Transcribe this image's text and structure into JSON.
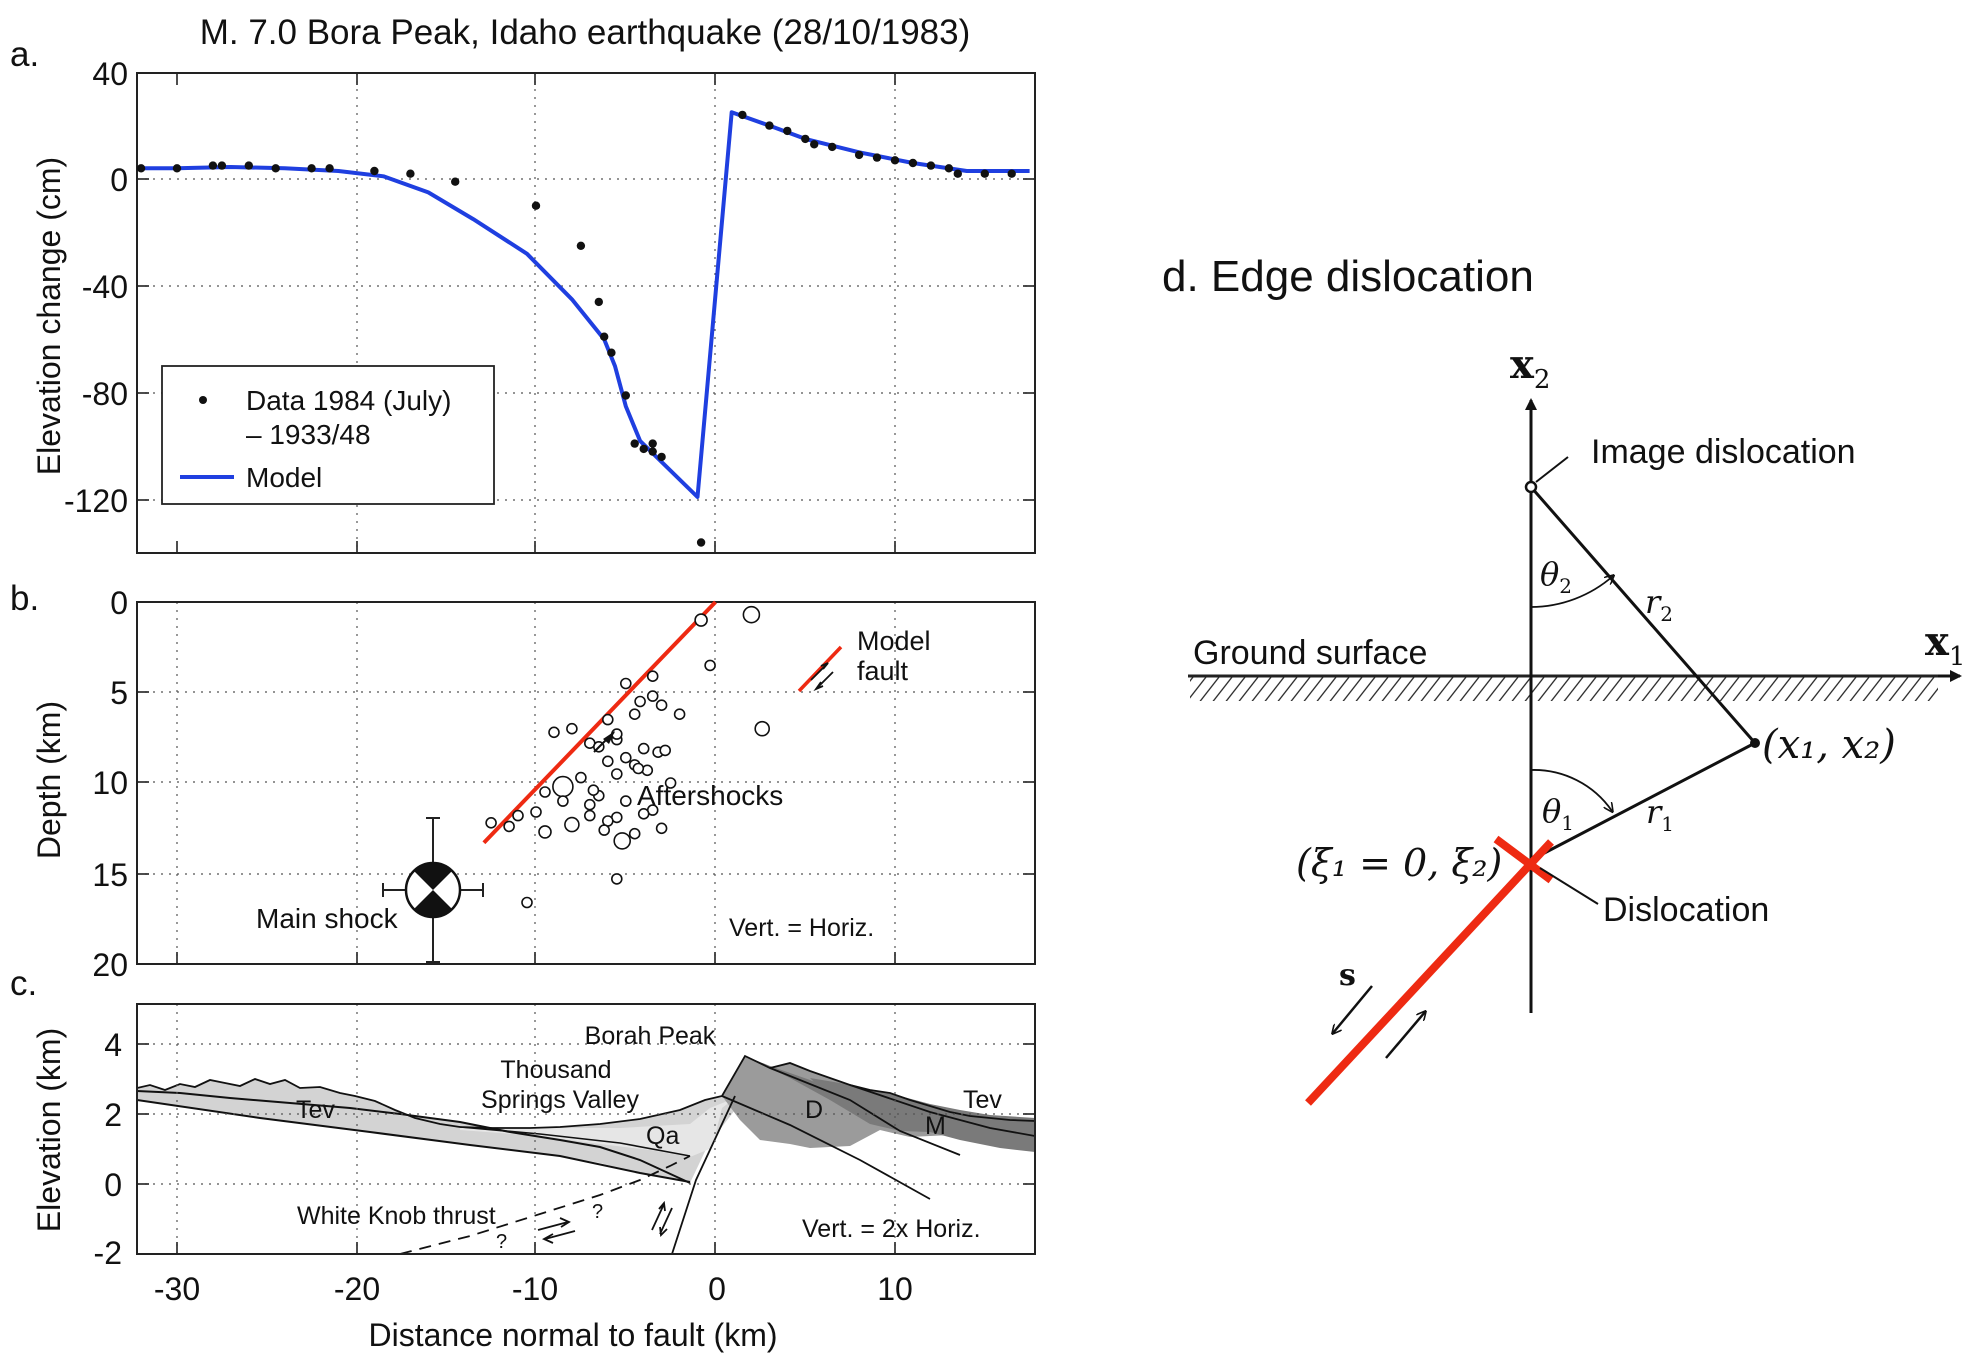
{
  "panel_a": {
    "letter": "a.",
    "title": "M. 7.0 Bora Peak, Idaho earthquake (28/10/1983)",
    "ylabel": "Elevation change (cm)",
    "legend": {
      "data_label_line1": "Data 1984 (July)",
      "data_label_line2": "– 1933/48",
      "model_label": "Model"
    },
    "ytick_labels": [
      "40",
      "0",
      "-40",
      "-80",
      "-120"
    ]
  },
  "panel_b": {
    "letter": "b.",
    "ylabel": "Depth (km)",
    "ytick_labels": [
      "0",
      "5",
      "10",
      "15",
      "20"
    ],
    "model_fault_line1": "Model",
    "model_fault_line2": "fault",
    "aftershocks": "Aftershocks",
    "main_shock": "Main shock",
    "scale_note": "Vert. = Horiz."
  },
  "panel_c": {
    "letter": "c.",
    "ylabel": "Elevation (km)",
    "xlabel": "Distance normal to fault (km)",
    "ytick_labels": [
      "4",
      "2",
      "0",
      "-2"
    ],
    "xtick_labels": [
      "-30",
      "-20",
      "-10",
      "0",
      "10"
    ],
    "borah_peak": "Borah Peak",
    "valley_line1": "Thousand",
    "valley_line2": "Springs Valley",
    "tev_left": "Tev",
    "tev_right": "Tev",
    "qa": "Qa",
    "d": "D",
    "m": "M",
    "thrust": "White Knob thrust",
    "q1": "?",
    "q2": "?",
    "scale_note": "Vert. = 2x Horiz."
  },
  "panel_d": {
    "title": "d. Edge dislocation",
    "x2_label": "x",
    "x2_sub": "2",
    "x1_label": "x",
    "x1_sub": "1",
    "image_dislocation": "Image dislocation",
    "ground_surface": "Ground surface",
    "dislocation": "Dislocation",
    "theta2": "θ",
    "theta2_sub": "2",
    "r2": "r",
    "r2_sub": "2",
    "theta1": "θ",
    "theta1_sub": "1",
    "r1": "r",
    "r1_sub": "1",
    "point_label": "(x₁, x₂)",
    "dislocation_coords": "(ξ₁ = 0, ξ₂)",
    "s_label": "s"
  },
  "colors": {
    "model": "#1f3fe0",
    "fault": "#ee2a12",
    "ink": "#111111",
    "unit_light": "#d3d3d3",
    "unit_dark": "#9b9b9b"
  },
  "chart_data": [
    {
      "type": "scatter",
      "id": "elevation_change",
      "xlim": [
        -32,
        17.5
      ],
      "ylim": [
        -140,
        40
      ],
      "grid": true,
      "legend_position": "lower-left",
      "series": [
        {
          "name": "Data 1984 (July) – 1933/48",
          "marker": "dot",
          "x": [
            -32,
            -30,
            -28,
            -27.5,
            -26,
            -24.5,
            -22.5,
            -21.5,
            -19,
            -17,
            -14.5,
            -10,
            -7.5,
            -6.5,
            -6.2,
            -5.8,
            -5,
            -4.5,
            -4,
            -3.5,
            -3.5,
            -3,
            -0.8,
            1.5,
            3,
            4,
            5,
            5.5,
            6.5,
            8,
            9,
            10,
            11,
            12,
            13,
            13.5,
            15,
            16.5
          ],
          "y": [
            4,
            4,
            5,
            5,
            5,
            4,
            4,
            4,
            3,
            2,
            -1,
            -10,
            -25,
            -46,
            -59,
            -65,
            -81,
            -99,
            -101,
            -99,
            -102,
            -104,
            -136,
            24,
            20,
            18,
            15,
            13,
            12,
            9,
            8,
            7,
            6,
            5,
            4,
            2,
            2,
            2
          ]
        },
        {
          "name": "Model",
          "marker": "line",
          "x": [
            -32,
            -30,
            -27,
            -24,
            -21,
            -18.5,
            -16,
            -13.5,
            -10.5,
            -8,
            -6.2,
            -5.6,
            -5,
            -4.2,
            -1,
            0.9,
            3,
            5,
            8,
            11,
            14,
            17.5
          ],
          "y": [
            4,
            4,
            4.5,
            4,
            3,
            1,
            -5,
            -15,
            -28,
            -45,
            -60,
            -70,
            -85,
            -98,
            -119,
            25,
            20,
            15,
            10,
            6,
            3,
            3
          ]
        }
      ]
    },
    {
      "type": "scatter",
      "id": "depth_section",
      "xlim": [
        -32,
        17.5
      ],
      "ylim": [
        20,
        0
      ],
      "grid": true,
      "series": [
        {
          "name": "Aftershocks",
          "marker": "circle",
          "x": [
            2,
            -3.5,
            -0.8,
            -0.3,
            -5,
            -3.5,
            -4.2,
            -3,
            -4.5,
            -6,
            -8,
            -9,
            -5.5,
            -7,
            -6.5,
            -4,
            -3.2,
            -5,
            -6,
            -4.5,
            -3.8,
            -5.5,
            -7.5,
            -2.5,
            -8.5,
            -9.5,
            -6.5,
            -5,
            -7,
            -3.5,
            -4,
            -5.5,
            -6,
            -8,
            -10,
            -11,
            -11.5,
            -12.5,
            -9.5,
            -4.5,
            -3,
            -2.8,
            -5.5,
            -7,
            -8.5,
            -6.2,
            -5.2,
            -6.8,
            2.6,
            -5.5,
            -10.5,
            -2,
            -4.3
          ],
          "y": [
            0.7,
            4.1,
            1,
            3.5,
            4.5,
            5.2,
            5.5,
            5.7,
            6.2,
            6.5,
            7,
            7.2,
            7.6,
            7.8,
            8,
            8.1,
            8.3,
            8.6,
            8.8,
            9,
            9.3,
            9.5,
            9.7,
            10,
            10.2,
            10.5,
            10.7,
            11,
            11.2,
            11.5,
            11.7,
            11.9,
            12.1,
            12.3,
            11.6,
            11.8,
            12.4,
            12.2,
            12.7,
            12.8,
            12.5,
            8.2,
            7.3,
            11.8,
            11,
            12.6,
            13.2,
            10.4,
            7,
            15.3,
            16.6,
            6.2,
            9.2
          ]
        },
        {
          "name": "Model fault",
          "marker": "line",
          "x": [
            -12.9,
            0
          ],
          "y": [
            13.3,
            0
          ]
        },
        {
          "name": "Main shock",
          "marker": "beachball",
          "x": [
            -16
          ],
          "y": [
            16
          ],
          "x_error": 2.8,
          "y_error": 4
        }
      ]
    },
    {
      "type": "area",
      "id": "geologic_cross_section",
      "xlim": [
        -32,
        17.5
      ],
      "ylim": [
        -2,
        5
      ],
      "xlabel": "Distance normal to fault (km)",
      "ylabel": "Elevation (km)",
      "grid": true,
      "units": [
        "Tev",
        "Qa",
        "D",
        "M",
        "Tev"
      ],
      "labels": [
        "Borah Peak",
        "Thousand Springs Valley",
        "White Knob thrust"
      ]
    }
  ]
}
